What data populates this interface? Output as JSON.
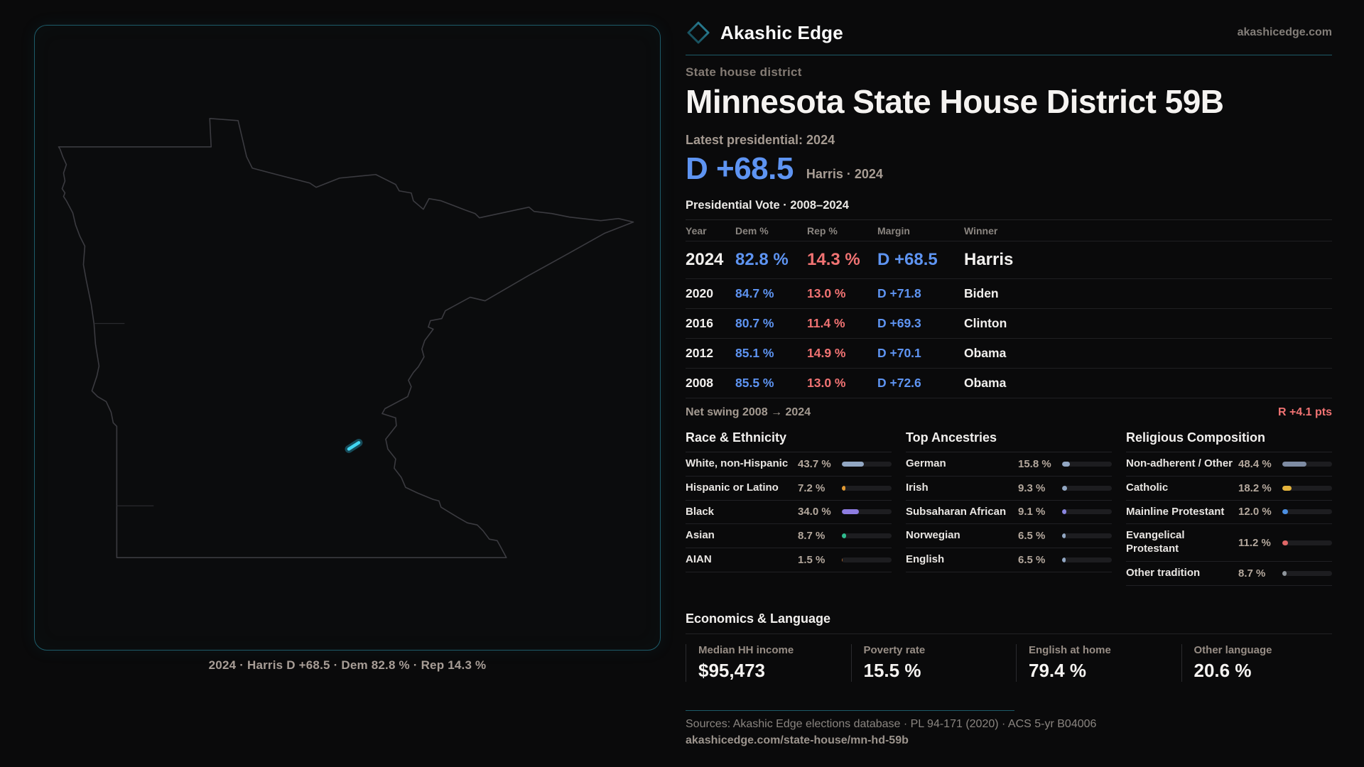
{
  "brand": {
    "name": "Akashic Edge",
    "domain": "akashicedge.com"
  },
  "page": {
    "kicker": "State house district",
    "title": "Minnesota State House District 59B",
    "latest_label": "Latest presidential: 2024",
    "hero_margin": "D +68.5",
    "hero_sub": "Harris · 2024"
  },
  "vote_table": {
    "title": "Presidential Vote · 2008–2024",
    "columns": [
      "Year",
      "Dem %",
      "Rep %",
      "Margin",
      "Winner"
    ],
    "rows": [
      {
        "year": "2024",
        "dem": "82.8 %",
        "rep": "14.3 %",
        "margin": "D +68.5",
        "winner": "Harris",
        "emphasis": true
      },
      {
        "year": "2020",
        "dem": "84.7 %",
        "rep": "13.0 %",
        "margin": "D +71.8",
        "winner": "Biden",
        "emphasis": false
      },
      {
        "year": "2016",
        "dem": "80.7 %",
        "rep": "11.4 %",
        "margin": "D +69.3",
        "winner": "Clinton",
        "emphasis": false
      },
      {
        "year": "2012",
        "dem": "85.1 %",
        "rep": "14.9 %",
        "margin": "D +70.1",
        "winner": "Obama",
        "emphasis": false
      },
      {
        "year": "2008",
        "dem": "85.5 %",
        "rep": "13.0 %",
        "margin": "D +72.6",
        "winner": "Obama",
        "emphasis": false
      }
    ],
    "net_swing_label": "Net swing 2008 → 2024",
    "net_swing_value": "R +4.1 pts"
  },
  "demographics": [
    {
      "title": "Race & Ethnicity",
      "rows": [
        {
          "label": "White, non-Hispanic",
          "value": "43.7 %",
          "pct": 43.7,
          "color": "#92a7c3"
        },
        {
          "label": "Hispanic or Latino",
          "value": "7.2 %",
          "pct": 7.2,
          "color": "#e29a33"
        },
        {
          "label": "Black",
          "value": "34.0 %",
          "pct": 34.0,
          "color": "#8d7ce0"
        },
        {
          "label": "Asian",
          "value": "8.7 %",
          "pct": 8.7,
          "color": "#2fbc8f"
        },
        {
          "label": "AIAN",
          "value": "1.5 %",
          "pct": 1.5,
          "color": "#a9622b"
        }
      ]
    },
    {
      "title": "Top Ancestries",
      "rows": [
        {
          "label": "German",
          "value": "15.8 %",
          "pct": 15.8,
          "color": "#92a7c3"
        },
        {
          "label": "Irish",
          "value": "9.3 %",
          "pct": 9.3,
          "color": "#92a7c3"
        },
        {
          "label": "Subsaharan African",
          "value": "9.1 %",
          "pct": 9.1,
          "color": "#8a86e0"
        },
        {
          "label": "Norwegian",
          "value": "6.5 %",
          "pct": 6.5,
          "color": "#92a7c3"
        },
        {
          "label": "English",
          "value": "6.5 %",
          "pct": 6.5,
          "color": "#92a7c3"
        }
      ]
    },
    {
      "title": "Religious Composition",
      "rows": [
        {
          "label": "Non-adherent / Other",
          "value": "48.4 %",
          "pct": 48.4,
          "color": "#7e8ca3"
        },
        {
          "label": "Catholic",
          "value": "18.2 %",
          "pct": 18.2,
          "color": "#e3b33c"
        },
        {
          "label": "Mainline Protestant",
          "value": "12.0 %",
          "pct": 12.0,
          "color": "#4b8fe2"
        },
        {
          "label": "Evangelical Protestant",
          "value": "11.2 %",
          "pct": 11.2,
          "color": "#e06767"
        },
        {
          "label": "Other tradition",
          "value": "8.7 %",
          "pct": 8.7,
          "color": "#8f959c"
        }
      ]
    }
  ],
  "economics": {
    "title": "Economics & Language",
    "metrics": [
      {
        "label": "Median HH income",
        "value": "$95,473"
      },
      {
        "label": "Poverty rate",
        "value": "15.5 %"
      },
      {
        "label": "English at home",
        "value": "79.4 %"
      },
      {
        "label": "Other language",
        "value": "20.6 %"
      }
    ]
  },
  "map": {
    "caption": "2024 · Harris D +68.5 · Dem 82.8 % · Rep 14.3 %"
  },
  "footer": {
    "sources": "Sources: Akashic Edge elections database · PL 94-171 (2020) · ACS 5-yr B04006",
    "permalink": "akashicedge.com/state-house/mn-hd-59b"
  },
  "colors": {
    "dem": "#5e94f2",
    "rep": "#f17373",
    "teal": "#1d5b69",
    "marker": "#41d6f2"
  }
}
